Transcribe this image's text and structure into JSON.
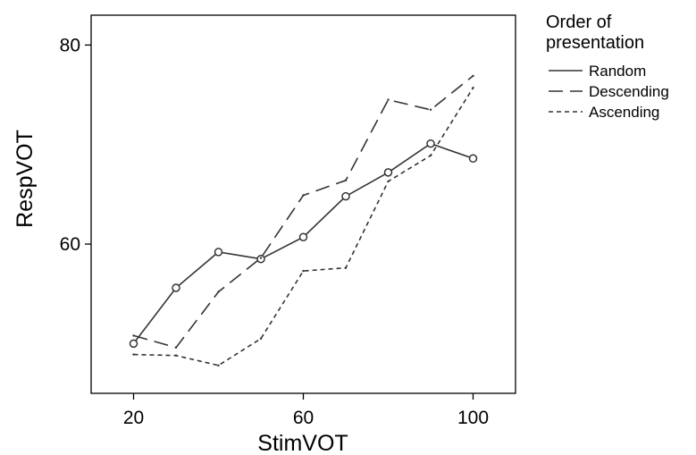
{
  "chart_data": {
    "type": "line",
    "title": "",
    "xlabel": "StimVOT",
    "ylabel": "RespVOT",
    "x": [
      20,
      30,
      40,
      50,
      60,
      70,
      80,
      90,
      100
    ],
    "xlim": [
      10,
      110
    ],
    "ylim": [
      45,
      83
    ],
    "xticks": [
      20,
      60,
      100
    ],
    "yticks": [
      60,
      80
    ],
    "grid": false,
    "legend": {
      "title": "Order of presentation",
      "title_lines": [
        "Order of",
        "presentation"
      ],
      "placement": "right"
    },
    "series": [
      {
        "name": "Random",
        "style": "solid",
        "marker": "circle",
        "values": [
          50.0,
          55.6,
          59.2,
          58.5,
          60.7,
          64.8,
          67.2,
          70.1,
          68.6
        ]
      },
      {
        "name": "Descending",
        "style": "dashed",
        "marker": "none",
        "values": [
          50.8,
          49.6,
          55.2,
          58.6,
          64.9,
          66.4,
          74.5,
          73.5,
          76.9
        ]
      },
      {
        "name": "Ascending",
        "style": "dotted",
        "marker": "none",
        "values": [
          48.9,
          48.8,
          47.8,
          50.5,
          57.3,
          57.6,
          66.3,
          68.9,
          75.7
        ]
      }
    ]
  }
}
